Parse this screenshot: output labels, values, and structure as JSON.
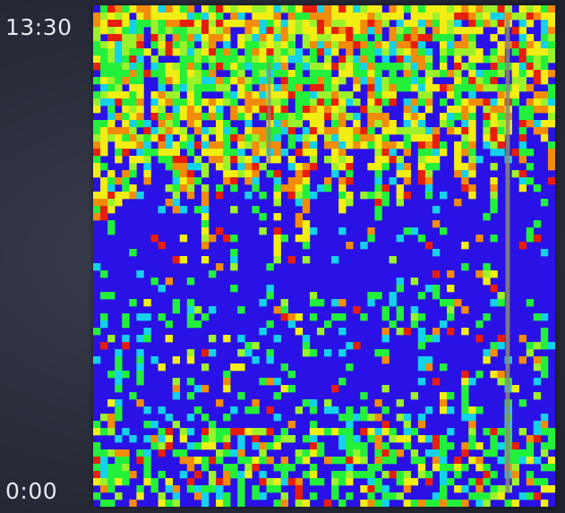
{
  "chart_data": {
    "type": "heatmap",
    "title": "",
    "xlabel": "",
    "ylabel": "",
    "y_tick_labels": {
      "top": "13:30",
      "bottom": "0:00"
    },
    "grid": {
      "cols": 64,
      "rows": 70
    },
    "legend": "none",
    "palette": {
      "blue": "#2a12e6",
      "cyan": "#14d2ea",
      "green": "#22f03a",
      "lightgreen": "#9cf22a",
      "yellow": "#f2ee14",
      "orange": "#f28c0a",
      "red": "#e81e0c",
      "gray": "#8a8a78"
    },
    "description_levels": [
      "blue",
      "cyan",
      "green",
      "lightgreen",
      "yellow",
      "orange",
      "red"
    ]
  }
}
